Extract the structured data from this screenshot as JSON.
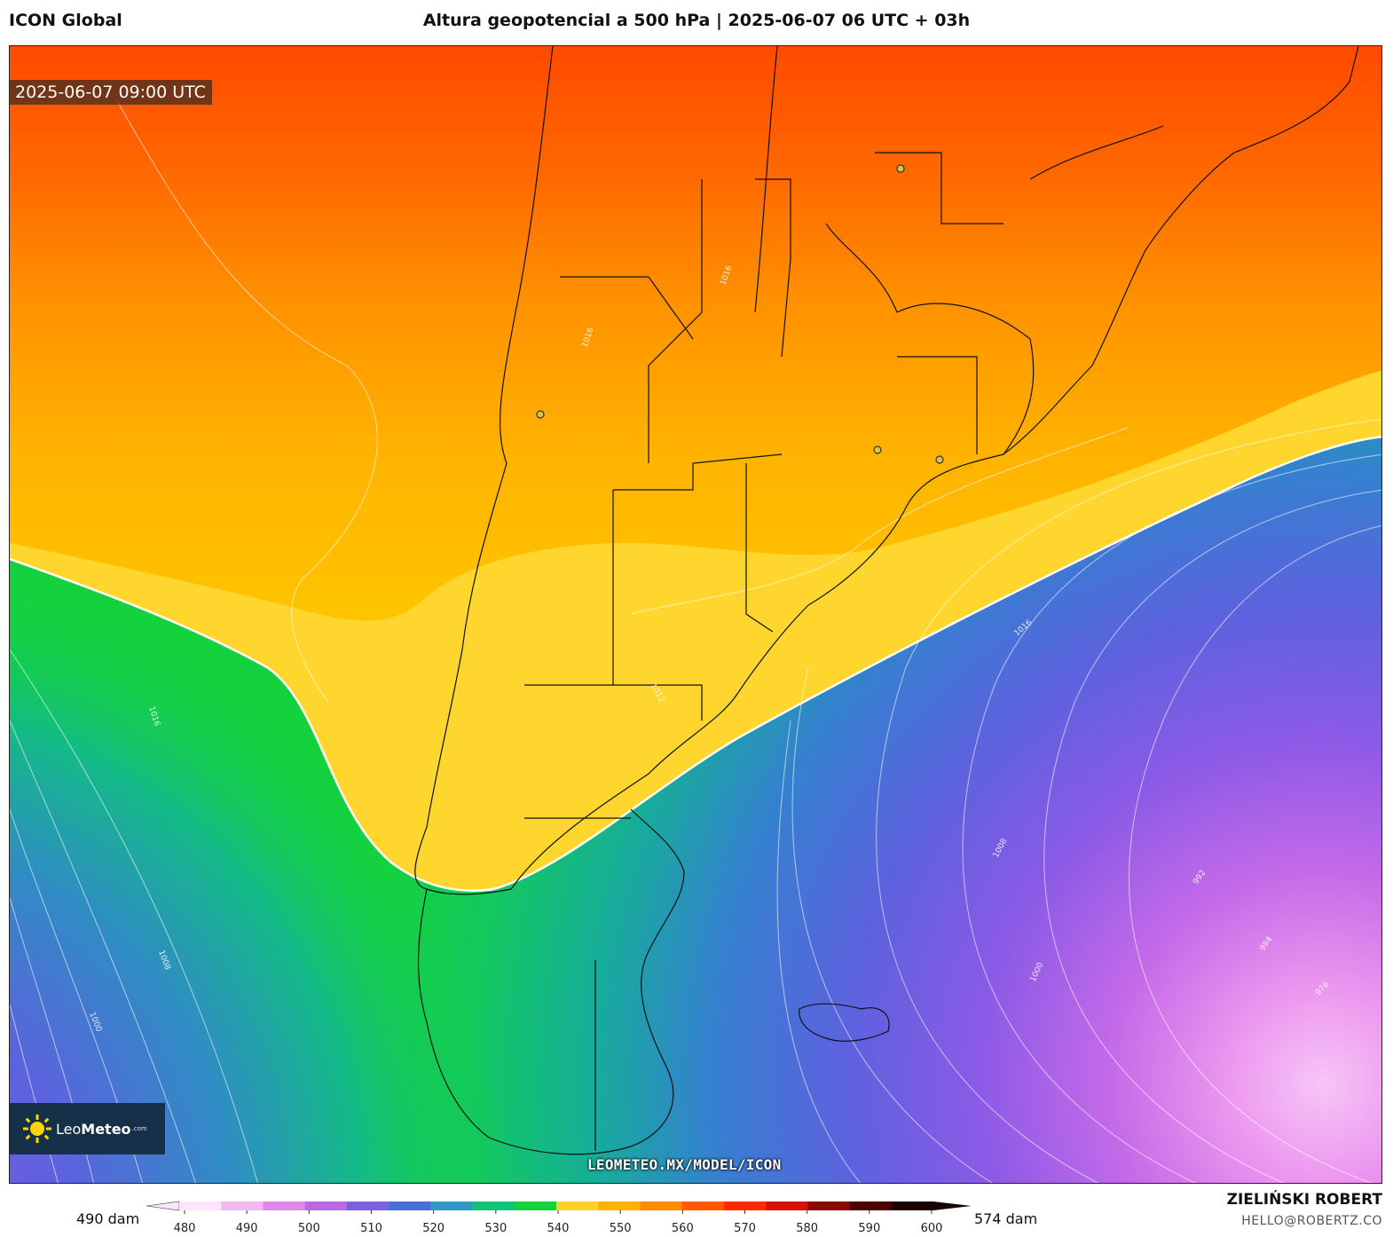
{
  "header": {
    "model": "ICON Global",
    "title": "Altura geopotencial a 500 hPa | 2025-06-07 06 UTC + 03h"
  },
  "map": {
    "valid_time": "2025-06-07 09:00 UTC",
    "pressure_labels": [
      {
        "text": "1016"
      },
      {
        "text": "1016"
      },
      {
        "text": "1016"
      },
      {
        "text": "1016"
      },
      {
        "text": "1008"
      },
      {
        "text": "1008"
      },
      {
        "text": "1000"
      },
      {
        "text": "1000"
      },
      {
        "text": "992"
      },
      {
        "text": "984"
      },
      {
        "text": "976"
      },
      {
        "text": "1012"
      }
    ],
    "colors": {
      "band_480": "#fcd3f7",
      "band_490": "#f0a8f0",
      "band_500": "#d070e8",
      "band_510": "#9a5ae8",
      "band_520": "#6a5ee0",
      "band_530": "#3a7ad8",
      "band_540": "#10b89a",
      "band_550": "#14d23e",
      "band_555": "#ffd72e",
      "band_560": "#ffba00",
      "band_565": "#ff9800",
      "band_570": "#ff6a00",
      "band_575": "#ff4a00"
    }
  },
  "logo": {
    "brand_light": "Leo",
    "brand_bold": "Meteo",
    "suffix": ".com",
    "icon": "sun-icon"
  },
  "watermark": "LEOMETEO.MX/MODEL/ICON",
  "colorbar": {
    "min_label": "490 dam",
    "max_label": "574 dam",
    "ticks": [
      "480",
      "490",
      "500",
      "510",
      "520",
      "530",
      "540",
      "550",
      "560",
      "570",
      "580",
      "590",
      "600"
    ],
    "colors": [
      "#fde6fb",
      "#f3b8f1",
      "#df8ae9",
      "#b66ae6",
      "#7d5fe3",
      "#4a6fdc",
      "#2f9ac2",
      "#11c47a",
      "#16d33a",
      "#ffd12a",
      "#ffb000",
      "#ff8a00",
      "#ff5a00",
      "#ff2a00",
      "#d81200",
      "#8e0a00",
      "#4a0500",
      "#1a0100"
    ]
  },
  "author": {
    "name": "ZIELIŃSKI ROBERT",
    "email": "HELLO@ROBERTZ.CO"
  }
}
